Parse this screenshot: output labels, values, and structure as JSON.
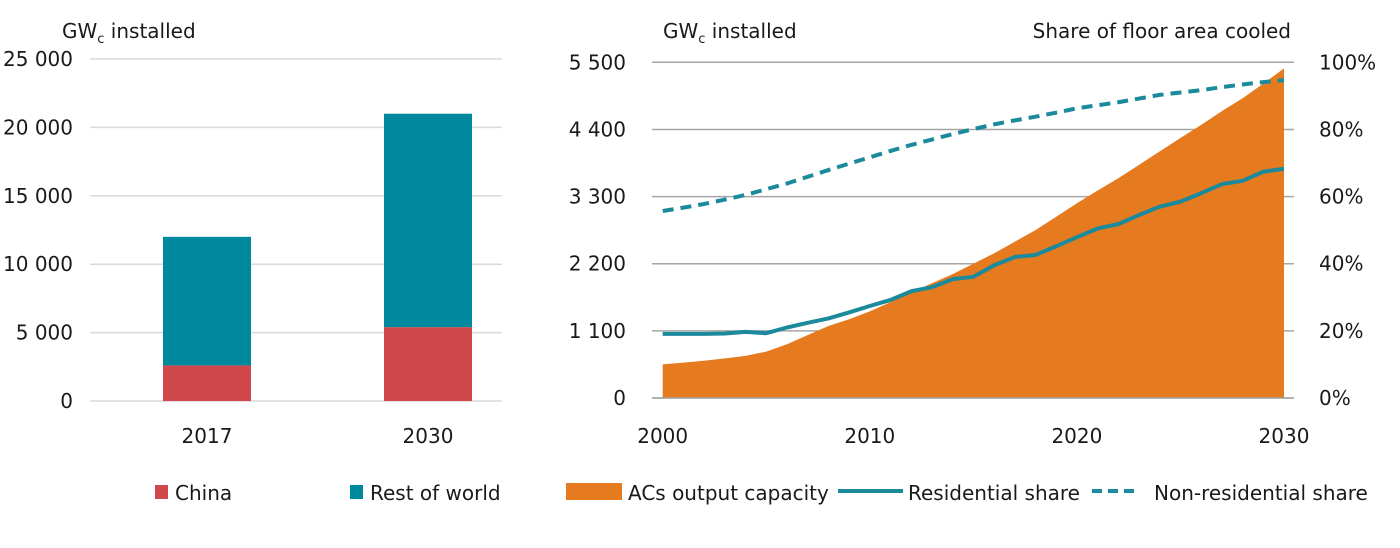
{
  "colors": {
    "china": "#d0484b",
    "rest_of_world": "#00889f",
    "ac_capacity": "#e67a1e",
    "residential": "#1a8a9c",
    "non_residential": "#1a8a9c",
    "grid_left": "#d9d9d9",
    "grid_right": "#a6a6a6",
    "text": "#1a1a1a"
  },
  "chart_data": [
    {
      "type": "bar",
      "stacked": true,
      "title": "",
      "ylabel": "GWc installed",
      "ylabel_main": "GW",
      "ylabel_sub": "c",
      "ylabel_rest": " installed",
      "xlabel": "",
      "ylim": [
        0,
        25000
      ],
      "yticks": [
        0,
        5000,
        10000,
        15000,
        20000,
        25000
      ],
      "ytick_labels": [
        "0",
        "5 000",
        "10 000",
        "15 000",
        "20 000",
        "25 000"
      ],
      "categories": [
        "2017",
        "2030"
      ],
      "series": [
        {
          "name": "China",
          "values": [
            2600,
            5400
          ]
        },
        {
          "name": "Rest of world",
          "values": [
            9400,
            15600
          ]
        }
      ],
      "totals": [
        12000,
        21000
      ],
      "grid": true,
      "legend": {
        "placement": "bottom",
        "entries": [
          "China",
          "Rest of world"
        ]
      }
    },
    {
      "type": "area",
      "title": "",
      "ylabel_left": "GWc installed",
      "ylabel_left_main": "GW",
      "ylabel_left_sub": "c",
      "ylabel_left_rest": " installed",
      "ylabel_right": "Share of floor area cooled",
      "xlabel": "",
      "xlim": [
        2000,
        2030
      ],
      "xticks": [
        2000,
        2010,
        2020,
        2030
      ],
      "xtick_labels": [
        "2000",
        "2010",
        "2020",
        "2030"
      ],
      "ylim_left": [
        0,
        5500
      ],
      "yticks_left": [
        0,
        1100,
        2200,
        3300,
        4400,
        5500
      ],
      "ytick_labels_left": [
        "0",
        "1 100",
        "2 200",
        "3 300",
        "4 400",
        "5 500"
      ],
      "ylim_right": [
        0,
        100
      ],
      "yticks_right": [
        0,
        20,
        40,
        60,
        80,
        100
      ],
      "ytick_labels_right": [
        "0%",
        "20%",
        "40%",
        "60%",
        "80%",
        "100%"
      ],
      "x": [
        2000,
        2001,
        2002,
        2003,
        2004,
        2005,
        2006,
        2007,
        2008,
        2009,
        2010,
        2011,
        2012,
        2013,
        2014,
        2015,
        2016,
        2017,
        2018,
        2019,
        2020,
        2021,
        2022,
        2023,
        2024,
        2025,
        2026,
        2027,
        2028,
        2029,
        2030
      ],
      "series": [
        {
          "name": "ACs output capacity",
          "type": "area",
          "axis": "left",
          "values": [
            550,
            580,
            610,
            650,
            690,
            760,
            880,
            1030,
            1180,
            1290,
            1420,
            1570,
            1730,
            1880,
            2030,
            2200,
            2370,
            2560,
            2750,
            2970,
            3190,
            3400,
            3600,
            3820,
            4040,
            4260,
            4475,
            4700,
            4910,
            5150,
            5400
          ]
        },
        {
          "name": "Residential share",
          "type": "line",
          "axis": "right",
          "unit": "%",
          "values": [
            19.1,
            19.1,
            19.1,
            19.2,
            19.7,
            19.3,
            21.0,
            22.4,
            23.7,
            25.5,
            27.4,
            29.2,
            31.8,
            33.0,
            35.4,
            36.1,
            39.5,
            42.0,
            42.6,
            45.2,
            47.9,
            50.5,
            51.8,
            54.5,
            57.0,
            58.5,
            61.0,
            63.7,
            64.7,
            67.4,
            68.3
          ]
        },
        {
          "name": "Non-residential share",
          "type": "line",
          "style": "dashed",
          "axis": "right",
          "unit": "%",
          "values": [
            55.7,
            56.7,
            57.8,
            59.1,
            60.5,
            62.2,
            63.9,
            65.9,
            67.9,
            69.8,
            71.7,
            73.6,
            75.4,
            77.0,
            78.6,
            80.1,
            81.5,
            82.7,
            83.8,
            85.0,
            86.3,
            87.2,
            88.1,
            89.2,
            90.3,
            91.0,
            91.7,
            92.6,
            93.4,
            94.1,
            94.7
          ]
        }
      ],
      "grid": true,
      "legend": {
        "placement": "bottom",
        "entries": [
          "ACs output capacity",
          "Residential share",
          "Non-residential share"
        ]
      }
    }
  ]
}
